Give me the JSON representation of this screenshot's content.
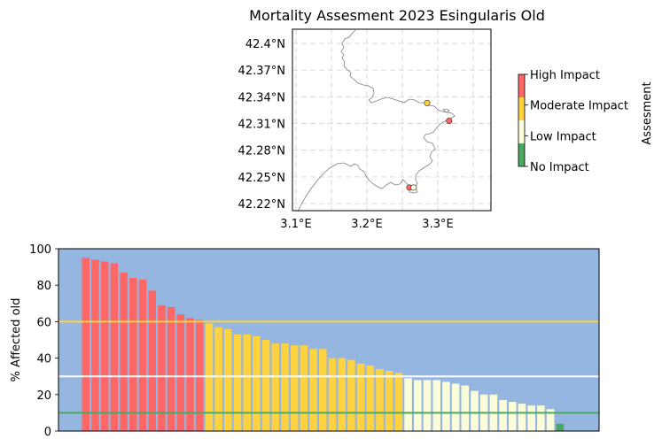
{
  "colors": {
    "high": "#ff6666",
    "moderate": "#ffd23f",
    "low": "#fbfcd8",
    "none": "#4da860",
    "bar_background": "#95b6e1",
    "coastline": "#808080",
    "gridline": "#d9d9d9"
  },
  "chart_data": [
    {
      "type": "map",
      "title": "Mortality Assesment 2023 Esingularis Old",
      "lon_ticks": [
        "3.1°E",
        "3.2°E",
        "3.3°E"
      ],
      "lat_ticks": [
        "42.4°N",
        "42.37°N",
        "42.34°N",
        "42.31°N",
        "42.28°N",
        "42.25°N",
        "42.22°N"
      ],
      "lon_range": [
        3.095,
        3.375
      ],
      "lat_range": [
        42.212,
        42.416
      ],
      "grid": true,
      "points": [
        {
          "lon": 3.285,
          "lat": 42.333,
          "level": "moderate"
        },
        {
          "lon": 3.316,
          "lat": 42.313,
          "level": "high"
        },
        {
          "lon": 3.26,
          "lat": 42.238,
          "level": "high"
        },
        {
          "lon": 3.266,
          "lat": 42.238,
          "level": "low"
        }
      ],
      "colorbar": {
        "label": "Assesment",
        "categories": [
          "No Impact",
          "Low Impact",
          "Moderate Impact",
          "High Impact"
        ],
        "placement": "right"
      }
    },
    {
      "type": "bar",
      "ylabel": "% Affected old",
      "xlabel": "",
      "ylim": [
        0,
        100
      ],
      "yticks": [
        "0",
        "20",
        "40",
        "60",
        "80",
        "100"
      ],
      "thresholds": [
        {
          "value": 60,
          "level": "moderate"
        },
        {
          "value": 30,
          "level": "low"
        },
        {
          "value": 10,
          "level": "none"
        }
      ],
      "values": [
        95,
        94,
        93,
        92,
        87,
        84,
        83,
        77,
        69,
        68,
        64,
        62,
        61,
        59,
        57,
        56,
        53,
        53,
        52,
        50,
        48,
        48,
        47,
        47,
        45,
        45,
        40,
        40,
        39,
        37,
        36,
        34,
        33,
        32,
        29,
        28,
        28,
        28,
        27,
        26,
        25,
        22,
        20,
        20,
        17,
        16,
        15,
        14,
        14,
        12,
        4
      ]
    }
  ]
}
